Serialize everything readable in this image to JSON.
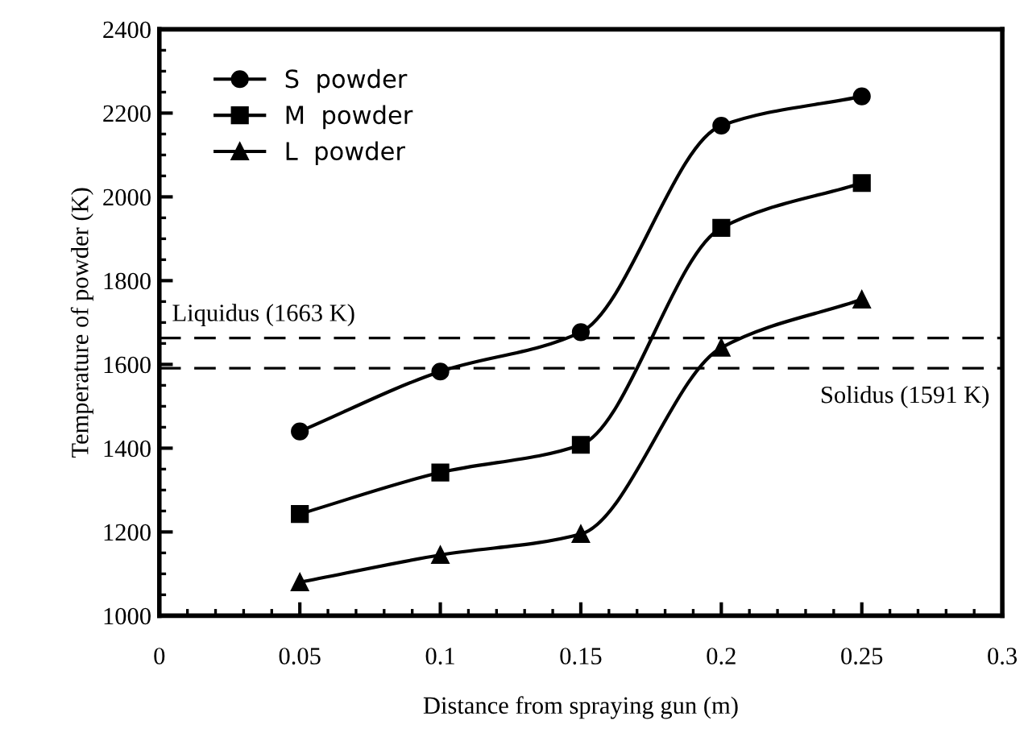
{
  "chart_data": {
    "type": "line",
    "xlabel": "Distance from spraying gun (m)",
    "ylabel": "Temperature of powder (K)",
    "x": [
      0.05,
      0.1,
      0.15,
      0.2,
      0.25
    ],
    "series": [
      {
        "name": "S  powder",
        "color": "#000000",
        "marker": "circle",
        "values": [
          1440,
          1583,
          1677,
          2170,
          2240
        ]
      },
      {
        "name": "M  powder",
        "color": "#000000",
        "marker": "square",
        "values": [
          1243,
          1342,
          1408,
          1926,
          2033
        ]
      },
      {
        "name": "L  powder",
        "color": "#000000",
        "marker": "triangle",
        "values": [
          1080,
          1145,
          1195,
          1640,
          1755
        ]
      }
    ],
    "xlim": [
      0,
      0.3
    ],
    "xticks": [
      0,
      0.05,
      0.1,
      0.15,
      0.2,
      0.25,
      0.3
    ],
    "ylim": [
      1000,
      2400
    ],
    "yticks": [
      1000,
      1200,
      1400,
      1600,
      1800,
      2000,
      2200,
      2400
    ],
    "ref_lines": [
      {
        "axis": "y",
        "value": 1663,
        "label": "Liquidus (1663 K)",
        "line_style": "dashed",
        "color": "#000000"
      },
      {
        "axis": "y",
        "value": 1591,
        "label": "Solidus (1591 K)",
        "line_style": "dashed",
        "color": "#000000"
      }
    ],
    "grid": false,
    "legend": "top left",
    "line_style": "solid"
  }
}
